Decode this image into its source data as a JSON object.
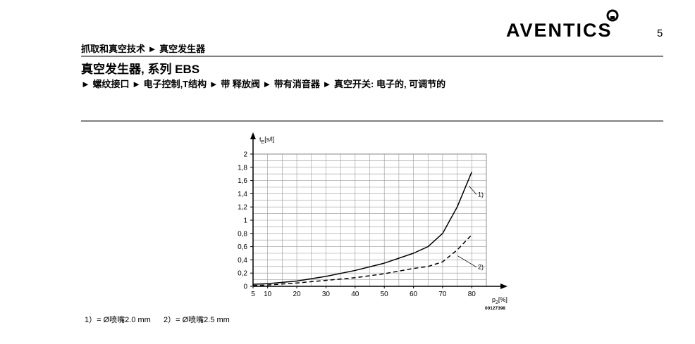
{
  "header": {
    "logo": "AVENTICS",
    "page_number": "5",
    "breadcrumb": "抓取和真空技术 ► 真空发生器",
    "title": "真空发生器, 系列 EBS",
    "subtitle": "► 螺纹接口 ► 电子控制,T结构 ► 带 释放阀 ► 带有消音器 ► 真空开关: 电子的, 可调节的"
  },
  "chart_data": {
    "type": "line",
    "y_label": "t",
    "y_label_sub": "E",
    "y_label_unit": "[s/l]",
    "x_label": "p",
    "x_label_sub": "2",
    "x_label_unit": "[%]",
    "code": "00127398",
    "x": [
      5,
      10,
      20,
      30,
      40,
      50,
      60,
      65,
      70,
      75,
      80
    ],
    "series": [
      {
        "name": "1)",
        "color": "#000000",
        "dash": "none",
        "values": [
          0.03,
          0.04,
          0.08,
          0.15,
          0.24,
          0.35,
          0.5,
          0.6,
          0.8,
          1.2,
          1.73
        ]
      },
      {
        "name": "2)",
        "color": "#000000",
        "dash": "6 4",
        "values": [
          0.01,
          0.02,
          0.05,
          0.09,
          0.13,
          0.19,
          0.27,
          0.3,
          0.37,
          0.55,
          0.78
        ]
      }
    ],
    "xlim": [
      5,
      85
    ],
    "ylim": [
      0,
      2
    ],
    "xticks": [
      5,
      10,
      20,
      30,
      40,
      50,
      60,
      70,
      80
    ],
    "yticks": [
      0,
      {
        "value": 0.2,
        "label": "0,2"
      },
      {
        "value": 0.4,
        "label": "0,4"
      },
      {
        "value": 0.6,
        "label": "0,6"
      },
      {
        "value": 0.8,
        "label": "0,8"
      },
      1,
      {
        "value": 1.2,
        "label": "1,2"
      },
      {
        "value": 1.4,
        "label": "1,4"
      },
      {
        "value": 1.6,
        "label": "1,6"
      },
      {
        "value": 1.8,
        "label": "1,8"
      },
      2
    ],
    "grid": true
  },
  "footnote": [
    "1）= Ø喷嘴2.0 mm",
    "2）= Ø喷嘴2.5 mm"
  ]
}
